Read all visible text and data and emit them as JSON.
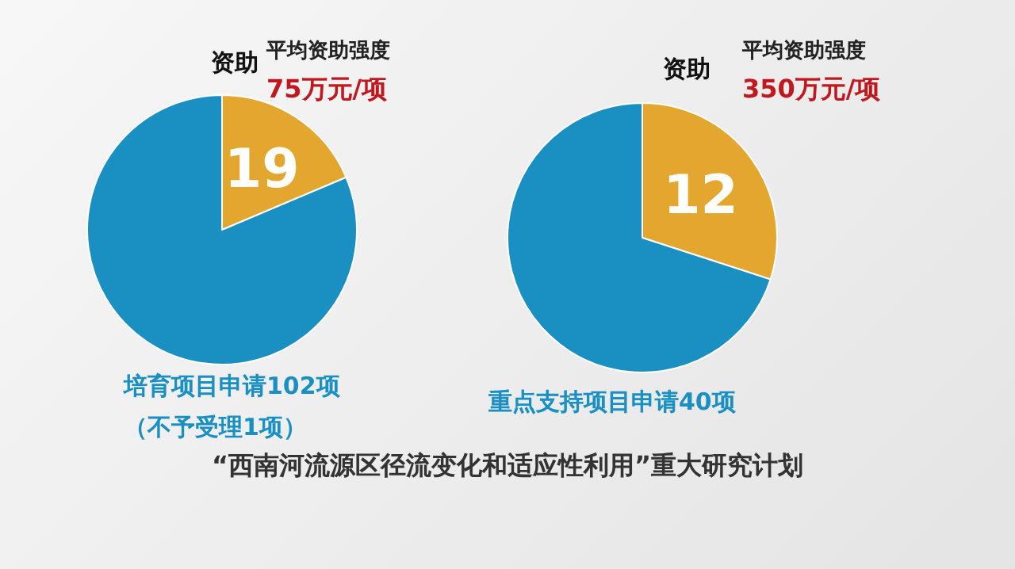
{
  "chart_data": [
    {
      "type": "pie",
      "title": "“西南河流源区径流变化和适应性利用”重大研究计划",
      "categories": [
        "资助",
        null
      ],
      "values": [
        19,
        83
      ],
      "colors": [
        "#e3a730",
        "#1a8fc2"
      ],
      "value_labels": [
        "19",
        null
      ],
      "annotations": [
        "平均资助强度",
        "75万元/项",
        "培育项目申请102项",
        "（不予受理1项）"
      ]
    },
    {
      "type": "pie",
      "categories": [
        "资助",
        null
      ],
      "values": [
        12,
        28
      ],
      "colors": [
        "#e3a730",
        "#1a8fc2"
      ],
      "value_labels": [
        "12",
        null
      ],
      "annotations": [
        "平均资助强度",
        "350万元/项",
        "重点支持项目申请40项"
      ]
    }
  ]
}
